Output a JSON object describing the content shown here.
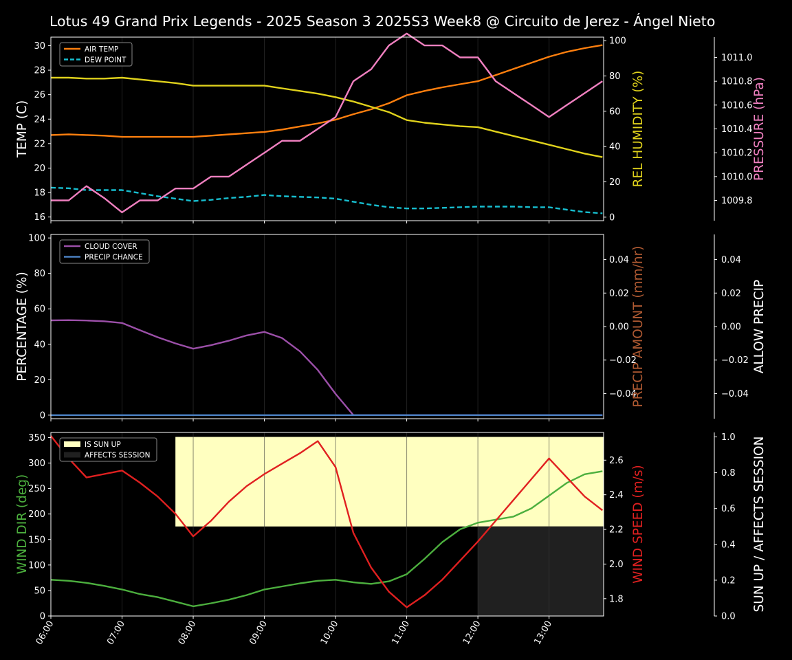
{
  "title": "Lotus 49 Grand Prix Legends - 2025 Season 3 2025S3 Week8 @ Circuito de Jerez - Ángel Nieto",
  "colors": {
    "air_temp": "#ff7f0e",
    "dew_point": "#17becf",
    "humidity": "#e0d21c",
    "pressure": "#f080c0",
    "cloud": "#9b4fa8",
    "precip_chance": "#4a7fc0",
    "precip_amount": "#b05a32",
    "wind_dir": "#4caf3e",
    "wind_speed": "#e02020",
    "sun": "#ffffc0",
    "affects": "#202020"
  },
  "x_axis": {
    "ticks": [
      "06:00",
      "07:00",
      "08:00",
      "09:00",
      "10:00",
      "11:00",
      "12:00",
      "13:00"
    ],
    "range_minutes": [
      360,
      826
    ]
  },
  "chart_data": [
    {
      "type": "line",
      "ylabel": "TEMP (C)",
      "ylim": [
        15.7,
        30.7
      ],
      "yticks": [
        "16",
        "18",
        "20",
        "22",
        "24",
        "26",
        "28",
        "30"
      ],
      "y2label": "REL HUMIDITY (%)",
      "y2lim": [
        -2,
        102
      ],
      "y2ticks": [
        "0",
        "20",
        "40",
        "60",
        "80",
        "100"
      ],
      "y3label": "PRESSURE (hPa)",
      "y3lim": [
        1009.63,
        1011.17
      ],
      "y3ticks": [
        "1009.8",
        "1010.0",
        "1010.2",
        "1010.4",
        "1010.6",
        "1010.8",
        "1011.0"
      ],
      "legend": [
        "AIR TEMP",
        "DEW POINT"
      ],
      "legend_position": "top-left",
      "x": [
        "06:00",
        "06:15",
        "06:30",
        "06:45",
        "07:00",
        "07:15",
        "07:30",
        "07:45",
        "08:00",
        "08:15",
        "08:30",
        "08:45",
        "09:00",
        "09:15",
        "09:30",
        "09:45",
        "10:00",
        "10:15",
        "10:30",
        "10:45",
        "11:00",
        "11:15",
        "11:30",
        "11:45",
        "12:00",
        "12:15",
        "12:30",
        "12:45",
        "13:00",
        "13:15",
        "13:30",
        "13:45"
      ],
      "series": [
        {
          "name": "AIR TEMP",
          "axis": "y",
          "values": [
            22.7,
            22.75,
            22.7,
            22.65,
            22.55,
            22.55,
            22.55,
            22.55,
            22.55,
            22.65,
            22.75,
            22.85,
            22.95,
            23.15,
            23.4,
            23.65,
            23.95,
            24.4,
            24.8,
            25.3,
            25.95,
            26.3,
            26.6,
            26.85,
            27.1,
            27.6,
            28.1,
            28.6,
            29.1,
            29.5,
            29.8,
            30.05
          ]
        },
        {
          "name": "DEW POINT",
          "axis": "y",
          "values": [
            18.4,
            18.35,
            18.2,
            18.2,
            18.2,
            17.95,
            17.7,
            17.5,
            17.3,
            17.4,
            17.55,
            17.65,
            17.8,
            17.7,
            17.65,
            17.6,
            17.5,
            17.25,
            17.0,
            16.8,
            16.7,
            16.7,
            16.75,
            16.8,
            16.85,
            16.85,
            16.85,
            16.8,
            16.8,
            16.6,
            16.4,
            16.3
          ]
        },
        {
          "name": "REL HUMIDITY",
          "axis": "y2",
          "values": [
            79,
            79,
            78.5,
            78.5,
            79,
            78,
            77,
            76,
            74.5,
            74.5,
            74.5,
            74.5,
            74.5,
            73,
            71.5,
            70,
            68,
            65.5,
            62.5,
            59.5,
            55,
            53.5,
            52.5,
            51.5,
            51,
            48.5,
            46,
            43.5,
            41,
            38.5,
            36,
            34
          ]
        },
        {
          "name": "PRESSURE",
          "axis": "y3",
          "values": [
            1009.8,
            1009.8,
            1009.92,
            1009.82,
            1009.7,
            1009.8,
            1009.8,
            1009.9,
            1009.9,
            1010.0,
            1010.0,
            1010.1,
            1010.2,
            1010.3,
            1010.3,
            1010.4,
            1010.5,
            1010.8,
            1010.9,
            1011.1,
            1011.2,
            1011.1,
            1011.1,
            1011.0,
            1011.0,
            1010.8,
            1010.7,
            1010.6,
            1010.5,
            1010.6,
            1010.7,
            1010.8
          ]
        }
      ]
    },
    {
      "type": "line",
      "ylabel": "PERCENTAGE (%)",
      "ylim": [
        -2,
        102
      ],
      "yticks": [
        "0",
        "20",
        "40",
        "60",
        "80",
        "100"
      ],
      "y2label": "PRECIP AMOUNT (mm/hr)",
      "y2lim": [
        -0.055,
        0.055
      ],
      "y2ticks": [
        "−0.04",
        "−0.02",
        "0.00",
        "0.02",
        "0.04"
      ],
      "y3label": "ALLOW PRECIP",
      "y3lim": [
        -0.055,
        0.055
      ],
      "y3ticks": [
        "−0.04",
        "−0.02",
        "0.00",
        "0.02",
        "0.04"
      ],
      "legend": [
        "CLOUD COVER",
        "PRECIP CHANCE"
      ],
      "legend_position": "top-left",
      "x": [
        "06:00",
        "06:15",
        "06:30",
        "06:45",
        "07:00",
        "07:15",
        "07:30",
        "07:45",
        "08:00",
        "08:15",
        "08:30",
        "08:45",
        "09:00",
        "09:15",
        "09:30",
        "09:45",
        "10:00",
        "10:15",
        "10:30",
        "10:45",
        "11:00",
        "11:15",
        "11:30",
        "11:45",
        "12:00",
        "12:15",
        "12:30",
        "12:45",
        "13:00",
        "13:15",
        "13:30",
        "13:45"
      ],
      "series": [
        {
          "name": "CLOUD COVER",
          "values": [
            53.5,
            53.6,
            53.4,
            53,
            52,
            48,
            44,
            40.5,
            37.5,
            39.5,
            42,
            45,
            47,
            43.5,
            36,
            25.5,
            12,
            0,
            0,
            0,
            0,
            0,
            0,
            0,
            0,
            0,
            0,
            0,
            0,
            0,
            0,
            0
          ]
        },
        {
          "name": "PRECIP CHANCE",
          "values": [
            0,
            0,
            0,
            0,
            0,
            0,
            0,
            0,
            0,
            0,
            0,
            0,
            0,
            0,
            0,
            0,
            0,
            0,
            0,
            0,
            0,
            0,
            0,
            0,
            0,
            0,
            0,
            0,
            0,
            0,
            0,
            0
          ]
        }
      ]
    },
    {
      "type": "line",
      "ylabel": "WIND DIR (deg)",
      "ylim": [
        0,
        360
      ],
      "yticks": [
        "0",
        "50",
        "100",
        "150",
        "200",
        "250",
        "300",
        "350"
      ],
      "y2label": "WIND SPEED (m/s)",
      "y2lim": [
        1.7,
        2.76
      ],
      "y2ticks": [
        "1.8",
        "2.0",
        "2.2",
        "2.4",
        "2.6"
      ],
      "y3label": "SUN UP / AFFECTS SESSION",
      "y3lim": [
        0,
        1.025
      ],
      "y3ticks": [
        "0.0",
        "0.2",
        "0.4",
        "0.6",
        "0.8",
        "1.0"
      ],
      "legend": [
        "IS SUN UP",
        "AFFECTS SESSION"
      ],
      "legend_position": "top-left",
      "sun_up": {
        "from": "07:45",
        "to": "13:45",
        "value": 1.0
      },
      "sun_down_value": 0.5,
      "affects_session": {
        "from": "12:00",
        "to": "13:45",
        "value": 0.5
      },
      "x": [
        "06:00",
        "06:15",
        "06:30",
        "06:45",
        "07:00",
        "07:15",
        "07:30",
        "07:45",
        "08:00",
        "08:15",
        "08:30",
        "08:45",
        "09:00",
        "09:15",
        "09:30",
        "09:45",
        "10:00",
        "10:15",
        "10:30",
        "10:45",
        "11:00",
        "11:15",
        "11:30",
        "11:45",
        "12:00",
        "12:15",
        "12:30",
        "12:45",
        "13:00",
        "13:15",
        "13:30",
        "13:45"
      ],
      "series": [
        {
          "name": "WIND DIR",
          "axis": "y",
          "values": [
            71,
            69,
            65,
            59,
            52,
            43,
            37,
            28,
            19,
            25,
            32,
            41,
            52,
            58,
            64,
            69,
            71,
            66,
            63,
            68,
            82,
            112,
            145,
            170,
            183,
            189,
            195,
            211,
            236,
            261,
            278,
            284
          ]
        },
        {
          "name": "WIND SPEED",
          "axis": "y2",
          "values": [
            2.74,
            2.61,
            2.5,
            2.52,
            2.54,
            2.47,
            2.39,
            2.29,
            2.16,
            2.25,
            2.36,
            2.45,
            2.52,
            2.58,
            2.64,
            2.71,
            2.56,
            2.18,
            1.98,
            1.84,
            1.75,
            1.82,
            1.91,
            2.02,
            2.13,
            2.25,
            2.37,
            2.49,
            2.61,
            2.5,
            2.39,
            2.31
          ]
        }
      ]
    }
  ]
}
